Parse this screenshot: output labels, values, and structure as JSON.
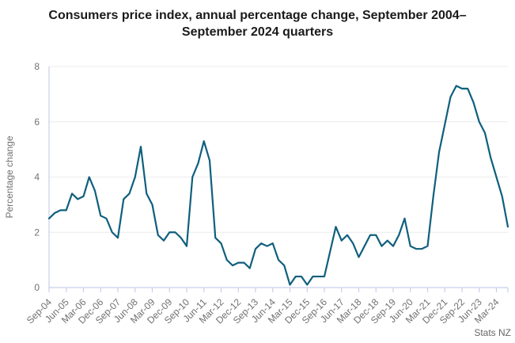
{
  "header": {
    "title": "Consumers price index, annual percentage change, September 2004–September 2024 quarters"
  },
  "source": {
    "label": "Stats NZ"
  },
  "colors": {
    "line": "#0f5f7d",
    "grid": "#ececec",
    "axis": "#c7cfe9",
    "tick_label": "#707070",
    "axis_title": "#707070",
    "title_text": "#1a1a1a",
    "source_text": "#666666",
    "background": "#ffffff"
  },
  "chart_data": {
    "type": "line",
    "title": "Consumers price index, annual percentage change, September 2004–September 2024 quarters",
    "xlabel": "",
    "ylabel": "Percentage change",
    "ylim": [
      0,
      8
    ],
    "yticks": [
      0,
      2,
      4,
      6,
      8
    ],
    "grid": "horizontal gridlines at y=2,4,6,8",
    "legend_position": "none",
    "x_tick_labels": [
      "Sep-04",
      "Jun-05",
      "Mar-06",
      "Dec-06",
      "Sep-07",
      "Jun-08",
      "Mar-09",
      "Dec-09",
      "Sep-10",
      "Jun-11",
      "Mar-12",
      "Dec-12",
      "Sep-13",
      "Jun-14",
      "Mar-15",
      "Dec-15",
      "Sep-16",
      "Jun-17",
      "Mar-18",
      "Dec-18",
      "Sep-19",
      "Jun-20",
      "Mar-21",
      "Dec-21",
      "Sep-22",
      "Jun-23",
      "Mar-24"
    ],
    "x_tick_every_n_points": 3,
    "x": [
      "Sep-04",
      "Dec-04",
      "Mar-05",
      "Jun-05",
      "Sep-05",
      "Dec-05",
      "Mar-06",
      "Jun-06",
      "Sep-06",
      "Dec-06",
      "Mar-07",
      "Jun-07",
      "Sep-07",
      "Dec-07",
      "Mar-08",
      "Jun-08",
      "Sep-08",
      "Dec-08",
      "Mar-09",
      "Jun-09",
      "Sep-09",
      "Dec-09",
      "Mar-10",
      "Jun-10",
      "Sep-10",
      "Dec-10",
      "Mar-11",
      "Jun-11",
      "Sep-11",
      "Dec-11",
      "Mar-12",
      "Jun-12",
      "Sep-12",
      "Dec-12",
      "Mar-13",
      "Jun-13",
      "Sep-13",
      "Dec-13",
      "Mar-14",
      "Jun-14",
      "Sep-14",
      "Dec-14",
      "Mar-15",
      "Jun-15",
      "Sep-15",
      "Dec-15",
      "Mar-16",
      "Jun-16",
      "Sep-16",
      "Dec-16",
      "Mar-17",
      "Jun-17",
      "Sep-17",
      "Dec-17",
      "Mar-18",
      "Jun-18",
      "Sep-18",
      "Dec-18",
      "Mar-19",
      "Jun-19",
      "Sep-19",
      "Dec-19",
      "Mar-20",
      "Jun-20",
      "Sep-20",
      "Dec-20",
      "Mar-21",
      "Jun-21",
      "Sep-21",
      "Dec-21",
      "Mar-22",
      "Jun-22",
      "Sep-22",
      "Dec-22",
      "Mar-23",
      "Jun-23",
      "Sep-23",
      "Dec-23",
      "Mar-24",
      "Jun-24",
      "Sep-24"
    ],
    "series": [
      {
        "name": "CPI annual percentage change",
        "values": [
          2.5,
          2.7,
          2.8,
          2.8,
          3.4,
          3.2,
          3.3,
          4.0,
          3.5,
          2.6,
          2.5,
          2.0,
          1.8,
          3.2,
          3.4,
          4.0,
          5.1,
          3.4,
          3.0,
          1.9,
          1.7,
          2.0,
          2.0,
          1.8,
          1.5,
          4.0,
          4.5,
          5.3,
          4.6,
          1.8,
          1.6,
          1.0,
          0.8,
          0.9,
          0.9,
          0.7,
          1.4,
          1.6,
          1.5,
          1.6,
          1.0,
          0.8,
          0.1,
          0.4,
          0.4,
          0.1,
          0.4,
          0.4,
          0.4,
          1.3,
          2.2,
          1.7,
          1.9,
          1.6,
          1.1,
          1.5,
          1.9,
          1.9,
          1.5,
          1.7,
          1.5,
          1.9,
          2.5,
          1.5,
          1.4,
          1.4,
          1.5,
          3.3,
          4.9,
          5.9,
          6.9,
          7.3,
          7.2,
          7.2,
          6.7,
          6.0,
          5.6,
          4.7,
          4.0,
          3.3,
          2.2
        ]
      }
    ],
    "source": "Stats NZ"
  }
}
